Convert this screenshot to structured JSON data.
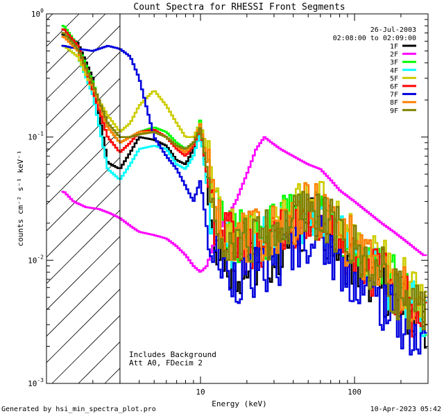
{
  "chart_data": {
    "type": "line",
    "title": "Count Spectra for RHESSI Front Segments",
    "xlabel": "Energy (keV)",
    "ylabel": "counts cm⁻² s⁻¹ keV⁻¹",
    "x_scale": "log",
    "y_scale": "log",
    "xlim": [
      1.0,
      300
    ],
    "ylim": [
      0.001,
      1.0
    ],
    "x_tick_labels": [
      {
        "value": 10,
        "label": "10"
      },
      {
        "value": 100,
        "label": "100"
      }
    ],
    "y_tick_labels": [
      {
        "value": 1.0,
        "label": "10",
        "exp": "0"
      },
      {
        "value": 0.1,
        "label": "10",
        "exp": "-1"
      },
      {
        "value": 0.01,
        "label": "10",
        "exp": "-2"
      },
      {
        "value": 0.001,
        "label": "10",
        "exp": "-3"
      }
    ],
    "date": "26-Jul-2003",
    "time_range": "02:08:00 to 02:09:00",
    "annotations": [
      "Includes Background",
      "Att A0, FDecim 2"
    ],
    "hatched_region": {
      "from": 1.0,
      "to": 3.0
    },
    "generated_by": "Generated by hsi_min_spectra_plot.pro",
    "timestamp": "10-Apr-2023 05:42",
    "series": [
      {
        "name": "1F",
        "color": "#000000",
        "points": [
          [
            1.3,
            0.68
          ],
          [
            1.6,
            0.58
          ],
          [
            2.0,
            0.3
          ],
          [
            2.5,
            0.062
          ],
          [
            3,
            0.055
          ],
          [
            3.5,
            0.075
          ],
          [
            4,
            0.1
          ],
          [
            5,
            0.095
          ],
          [
            6,
            0.085
          ],
          [
            7,
            0.065
          ],
          [
            8,
            0.06
          ],
          [
            9,
            0.08
          ],
          [
            10,
            0.12
          ],
          [
            11,
            0.045
          ],
          [
            12,
            0.018
          ],
          [
            14,
            0.012
          ],
          [
            16,
            0.009
          ],
          [
            19,
            0.008
          ],
          [
            22,
            0.009
          ],
          [
            27,
            0.01
          ],
          [
            33,
            0.012
          ],
          [
            40,
            0.017
          ],
          [
            50,
            0.021
          ],
          [
            60,
            0.02
          ],
          [
            70,
            0.016
          ],
          [
            80,
            0.012
          ],
          [
            100,
            0.009
          ],
          [
            120,
            0.0075
          ],
          [
            150,
            0.006
          ],
          [
            180,
            0.005
          ],
          [
            220,
            0.004
          ],
          [
            280,
            0.0032
          ]
        ]
      },
      {
        "name": "2F",
        "color": "#ff00ff",
        "points": [
          [
            1.3,
            0.036
          ],
          [
            1.5,
            0.03
          ],
          [
            1.8,
            0.027
          ],
          [
            2.2,
            0.026
          ],
          [
            2.6,
            0.024
          ],
          [
            3,
            0.022
          ],
          [
            3.5,
            0.019
          ],
          [
            4,
            0.017
          ],
          [
            5,
            0.016
          ],
          [
            6,
            0.015
          ],
          [
            7,
            0.013
          ],
          [
            8,
            0.011
          ],
          [
            9,
            0.009
          ],
          [
            10,
            0.008
          ],
          [
            11,
            0.009
          ],
          [
            12,
            0.013
          ],
          [
            14,
            0.02
          ],
          [
            17,
            0.03
          ],
          [
            20,
            0.05
          ],
          [
            23,
            0.08
          ],
          [
            26,
            0.1
          ],
          [
            29,
            0.09
          ],
          [
            33,
            0.08
          ],
          [
            40,
            0.07
          ],
          [
            50,
            0.06
          ],
          [
            60,
            0.055
          ],
          [
            70,
            0.045
          ],
          [
            80,
            0.037
          ],
          [
            100,
            0.03
          ],
          [
            120,
            0.025
          ],
          [
            150,
            0.02
          ],
          [
            180,
            0.017
          ],
          [
            220,
            0.014
          ],
          [
            280,
            0.011
          ]
        ]
      },
      {
        "name": "3F",
        "color": "#00ff00",
        "points": [
          [
            1.3,
            0.8
          ],
          [
            1.6,
            0.55
          ],
          [
            2.0,
            0.28
          ],
          [
            2.5,
            0.12
          ],
          [
            3,
            0.09
          ],
          [
            3.5,
            0.1
          ],
          [
            4,
            0.11
          ],
          [
            5,
            0.12
          ],
          [
            6,
            0.11
          ],
          [
            7,
            0.09
          ],
          [
            8,
            0.08
          ],
          [
            9,
            0.09
          ],
          [
            10,
            0.14
          ],
          [
            11,
            0.06
          ],
          [
            12,
            0.03
          ],
          [
            14,
            0.018
          ],
          [
            17,
            0.016
          ],
          [
            20,
            0.015
          ],
          [
            25,
            0.016
          ],
          [
            30,
            0.018
          ],
          [
            40,
            0.022
          ],
          [
            50,
            0.027
          ],
          [
            60,
            0.026
          ],
          [
            70,
            0.022
          ],
          [
            80,
            0.018
          ],
          [
            100,
            0.013
          ],
          [
            120,
            0.011
          ],
          [
            150,
            0.009
          ],
          [
            180,
            0.007
          ],
          [
            220,
            0.005
          ],
          [
            280,
            0.0035
          ]
        ]
      },
      {
        "name": "4F",
        "color": "#00ffff",
        "points": [
          [
            1.3,
            0.55
          ],
          [
            1.6,
            0.45
          ],
          [
            2.0,
            0.22
          ],
          [
            2.5,
            0.055
          ],
          [
            3,
            0.045
          ],
          [
            3.5,
            0.06
          ],
          [
            4,
            0.08
          ],
          [
            5,
            0.085
          ],
          [
            6,
            0.08
          ],
          [
            7,
            0.06
          ],
          [
            8,
            0.055
          ],
          [
            9,
            0.07
          ],
          [
            10,
            0.11
          ],
          [
            11,
            0.04
          ],
          [
            12,
            0.022
          ],
          [
            14,
            0.015
          ],
          [
            17,
            0.014
          ],
          [
            20,
            0.013
          ],
          [
            25,
            0.014
          ],
          [
            30,
            0.016
          ],
          [
            40,
            0.02
          ],
          [
            50,
            0.024
          ],
          [
            60,
            0.023
          ],
          [
            70,
            0.019
          ],
          [
            80,
            0.015
          ],
          [
            100,
            0.011
          ],
          [
            120,
            0.009
          ],
          [
            150,
            0.0075
          ],
          [
            180,
            0.006
          ],
          [
            220,
            0.0045
          ],
          [
            280,
            0.0033
          ]
        ]
      },
      {
        "name": "5F",
        "color": "#cccc00",
        "points": [
          [
            1.3,
            0.55
          ],
          [
            1.6,
            0.45
          ],
          [
            2.0,
            0.24
          ],
          [
            2.5,
            0.15
          ],
          [
            3,
            0.11
          ],
          [
            3.5,
            0.13
          ],
          [
            4,
            0.18
          ],
          [
            5,
            0.24
          ],
          [
            6,
            0.18
          ],
          [
            7,
            0.13
          ],
          [
            8,
            0.1
          ],
          [
            9,
            0.1
          ],
          [
            10,
            0.13
          ],
          [
            11,
            0.08
          ],
          [
            12,
            0.04
          ],
          [
            14,
            0.02
          ],
          [
            17,
            0.017
          ],
          [
            20,
            0.016
          ],
          [
            25,
            0.017
          ],
          [
            30,
            0.019
          ],
          [
            40,
            0.024
          ],
          [
            50,
            0.029
          ],
          [
            60,
            0.028
          ],
          [
            70,
            0.024
          ],
          [
            80,
            0.019
          ],
          [
            100,
            0.015
          ],
          [
            120,
            0.012
          ],
          [
            150,
            0.01
          ],
          [
            180,
            0.008
          ],
          [
            220,
            0.006
          ],
          [
            280,
            0.0042
          ]
        ]
      },
      {
        "name": "6F",
        "color": "#ff0000",
        "points": [
          [
            1.3,
            0.75
          ],
          [
            1.6,
            0.55
          ],
          [
            2.0,
            0.24
          ],
          [
            2.5,
            0.1
          ],
          [
            3,
            0.075
          ],
          [
            3.5,
            0.09
          ],
          [
            4,
            0.11
          ],
          [
            5,
            0.115
          ],
          [
            6,
            0.1
          ],
          [
            7,
            0.08
          ],
          [
            8,
            0.07
          ],
          [
            9,
            0.085
          ],
          [
            10,
            0.12
          ],
          [
            11,
            0.05
          ],
          [
            12,
            0.025
          ],
          [
            14,
            0.016
          ],
          [
            17,
            0.014
          ],
          [
            20,
            0.012
          ],
          [
            25,
            0.013
          ],
          [
            30,
            0.015
          ],
          [
            40,
            0.019
          ],
          [
            50,
            0.023
          ],
          [
            60,
            0.022
          ],
          [
            70,
            0.018
          ],
          [
            80,
            0.014
          ],
          [
            100,
            0.011
          ],
          [
            120,
            0.009
          ],
          [
            150,
            0.0075
          ],
          [
            180,
            0.006
          ],
          [
            220,
            0.0045
          ],
          [
            280,
            0.0032
          ]
        ]
      },
      {
        "name": "7F",
        "color": "#0000dd",
        "points": [
          [
            1.3,
            0.55
          ],
          [
            1.6,
            0.52
          ],
          [
            2.0,
            0.5
          ],
          [
            2.5,
            0.55
          ],
          [
            3,
            0.52
          ],
          [
            3.5,
            0.45
          ],
          [
            4,
            0.3
          ],
          [
            5,
            0.1
          ],
          [
            6,
            0.07
          ],
          [
            7,
            0.055
          ],
          [
            8,
            0.04
          ],
          [
            9,
            0.03
          ],
          [
            10,
            0.045
          ],
          [
            11,
            0.018
          ],
          [
            12,
            0.012
          ],
          [
            14,
            0.009
          ],
          [
            17,
            0.0075
          ],
          [
            20,
            0.007
          ],
          [
            25,
            0.008
          ],
          [
            30,
            0.009
          ],
          [
            40,
            0.013
          ],
          [
            50,
            0.016
          ],
          [
            60,
            0.015
          ],
          [
            70,
            0.012
          ],
          [
            80,
            0.009
          ],
          [
            100,
            0.007
          ],
          [
            120,
            0.0055
          ],
          [
            150,
            0.0045
          ],
          [
            180,
            0.0036
          ],
          [
            220,
            0.0028
          ],
          [
            280,
            0.002
          ]
        ]
      },
      {
        "name": "8F",
        "color": "#ff8000",
        "points": [
          [
            1.3,
            0.65
          ],
          [
            1.6,
            0.5
          ],
          [
            2.0,
            0.26
          ],
          [
            2.5,
            0.12
          ],
          [
            3,
            0.09
          ],
          [
            3.5,
            0.1
          ],
          [
            4,
            0.11
          ],
          [
            5,
            0.11
          ],
          [
            6,
            0.1
          ],
          [
            7,
            0.085
          ],
          [
            8,
            0.075
          ],
          [
            9,
            0.09
          ],
          [
            10,
            0.13
          ],
          [
            11,
            0.06
          ],
          [
            12,
            0.03
          ],
          [
            14,
            0.018
          ],
          [
            17,
            0.016
          ],
          [
            20,
            0.015
          ],
          [
            25,
            0.016
          ],
          [
            30,
            0.018
          ],
          [
            40,
            0.022
          ],
          [
            50,
            0.026
          ],
          [
            60,
            0.025
          ],
          [
            70,
            0.021
          ],
          [
            80,
            0.017
          ],
          [
            100,
            0.013
          ],
          [
            120,
            0.01
          ],
          [
            150,
            0.008
          ],
          [
            180,
            0.0065
          ],
          [
            220,
            0.005
          ],
          [
            280,
            0.0037
          ]
        ]
      },
      {
        "name": "9F",
        "color": "#808000",
        "points": [
          [
            1.3,
            0.7
          ],
          [
            1.6,
            0.52
          ],
          [
            2.0,
            0.27
          ],
          [
            2.5,
            0.13
          ],
          [
            3,
            0.1
          ],
          [
            3.5,
            0.1
          ],
          [
            4,
            0.105
          ],
          [
            5,
            0.11
          ],
          [
            6,
            0.1
          ],
          [
            7,
            0.085
          ],
          [
            8,
            0.08
          ],
          [
            9,
            0.09
          ],
          [
            10,
            0.12
          ],
          [
            11,
            0.055
          ],
          [
            12,
            0.028
          ],
          [
            14,
            0.017
          ],
          [
            17,
            0.015
          ],
          [
            20,
            0.014
          ],
          [
            25,
            0.015
          ],
          [
            30,
            0.017
          ],
          [
            40,
            0.021
          ],
          [
            50,
            0.025
          ],
          [
            60,
            0.024
          ],
          [
            70,
            0.02
          ],
          [
            80,
            0.016
          ],
          [
            100,
            0.012
          ],
          [
            120,
            0.0095
          ],
          [
            150,
            0.0078
          ],
          [
            180,
            0.006
          ],
          [
            220,
            0.0046
          ],
          [
            280,
            0.0034
          ]
        ]
      }
    ]
  }
}
